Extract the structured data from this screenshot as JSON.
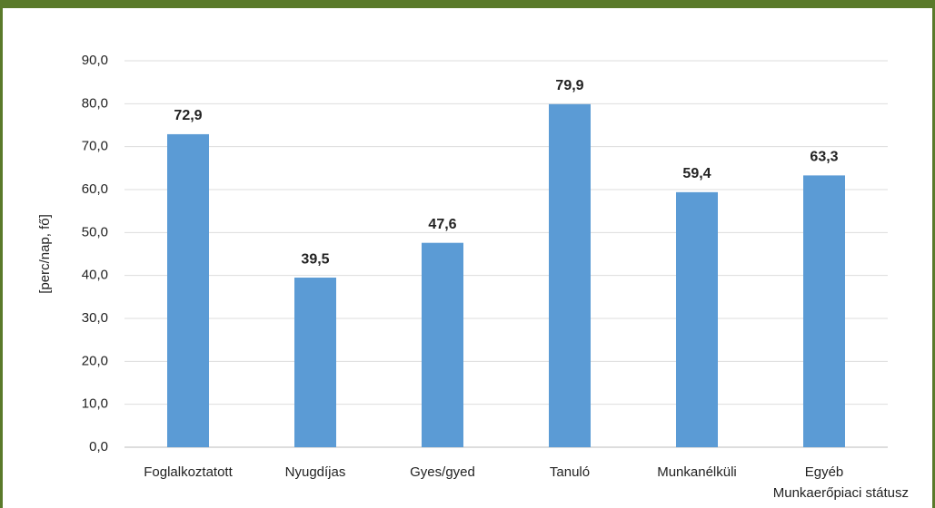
{
  "chart_data": {
    "type": "bar",
    "categories": [
      "Foglalkoztatott",
      "Nyugdíjas",
      "Gyes/gyed",
      "Tanuló",
      "Munkanélküli",
      "Egyéb"
    ],
    "values": [
      72.9,
      39.5,
      47.6,
      79.9,
      59.4,
      63.3
    ],
    "value_labels": [
      "72,9",
      "39,5",
      "47,6",
      "79,9",
      "59,4",
      "63,3"
    ],
    "color": "#5b9bd5",
    "ylabel": "[perc/nap, fő]",
    "xlabel": "Munkaerőpiaci státusz",
    "ylim": [
      0,
      90
    ],
    "yticks": [
      {
        "value": 0,
        "label": "0,0"
      },
      {
        "value": 10,
        "label": "10,0"
      },
      {
        "value": 20,
        "label": "20,0"
      },
      {
        "value": 30,
        "label": "30,0"
      },
      {
        "value": 40,
        "label": "40,0"
      },
      {
        "value": 50,
        "label": "50,0"
      },
      {
        "value": 60,
        "label": "60,0"
      },
      {
        "value": 70,
        "label": "70,0"
      },
      {
        "value": 80,
        "label": "80,0"
      },
      {
        "value": 90,
        "label": "90,0"
      }
    ],
    "grid": true
  }
}
